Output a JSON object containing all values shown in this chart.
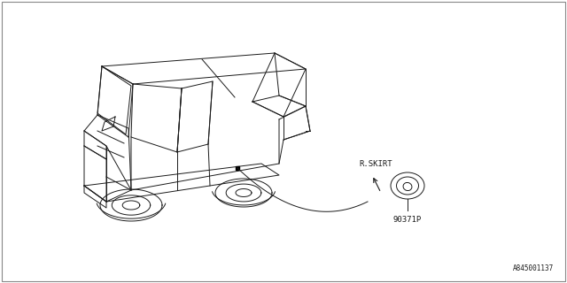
{
  "bg_color": "#ffffff",
  "part_label": "R.SKIRT",
  "part_number": "90371P",
  "diagram_id": "A845001137",
  "font_color": "#1a1a1a",
  "line_color": "#1a1a1a",
  "line_width": 0.7
}
